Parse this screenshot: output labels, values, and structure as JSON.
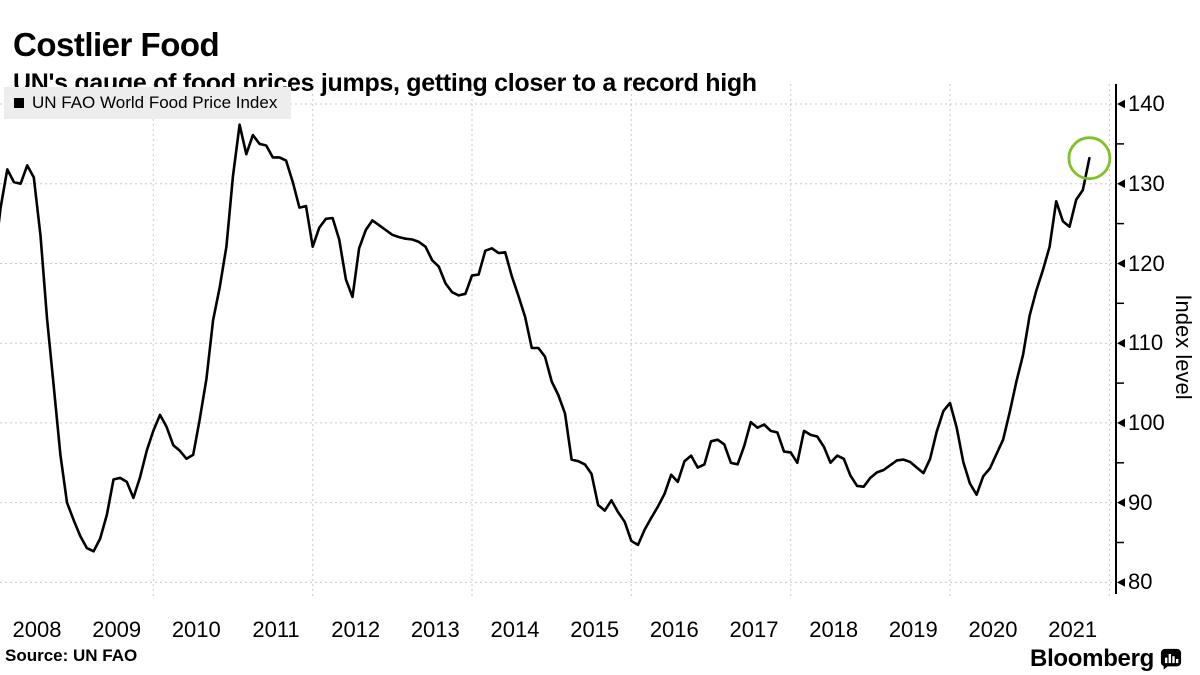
{
  "header": {
    "title": "Costlier Food",
    "subtitle": "UN's gauge of food prices jumps, getting closer to a record high"
  },
  "legend": {
    "label": "UN FAO World Food Price Index"
  },
  "source": {
    "label": "Source: UN FAO"
  },
  "branding": {
    "logo_text": "Bloomberg"
  },
  "colors": {
    "line": "#000000",
    "grid": "#c9c9c9",
    "axis": "#000000",
    "legend_bg": "#ededed",
    "highlight": "#7ec225",
    "text": "#000000",
    "background": "#ffffff"
  },
  "chart_data": {
    "type": "line",
    "title": "UN FAO World Food Price Index",
    "xlabel": "",
    "ylabel": "Index level",
    "ylim": [
      77.5,
      142.5
    ],
    "grid": true,
    "legend_position": "top-left",
    "y_major_ticks": [
      140,
      130,
      120,
      110,
      100,
      90,
      80
    ],
    "y_minor_ticks": [
      135,
      125,
      115,
      105,
      95,
      85
    ],
    "x_year_labels": [
      "2008",
      "2009",
      "2010",
      "2011",
      "2012",
      "2013",
      "2014",
      "2015",
      "2016",
      "2017",
      "2018",
      "2019",
      "2020",
      "2021"
    ],
    "x_gridline_years": [
      2010,
      2012,
      2014,
      2016,
      2018,
      2020,
      2022
    ],
    "frequency": "monthly",
    "start": "2008-01",
    "end": "2021-10",
    "series": [
      {
        "name": "UN FAO World Food Price Index",
        "values": [
          120.0,
          127.0,
          131.8,
          130.2,
          130.0,
          132.3,
          130.8,
          123.5,
          113.0,
          104.5,
          96.0,
          90.0,
          87.8,
          85.8,
          84.3,
          83.9,
          85.5,
          88.5,
          92.9,
          93.1,
          92.6,
          90.6,
          93.2,
          96.5,
          99.0,
          101.0,
          99.5,
          97.2,
          96.5,
          95.5,
          96.0,
          100.5,
          105.5,
          112.9,
          117.0,
          122.1,
          131.0,
          137.4,
          133.7,
          136.1,
          135.0,
          134.8,
          133.3,
          133.3,
          132.9,
          130.2,
          127.0,
          127.2,
          122.1,
          124.5,
          125.6,
          125.7,
          123.0,
          118.0,
          115.8,
          121.9,
          124.2,
          125.4,
          124.8,
          124.2,
          123.6,
          123.3,
          123.1,
          123.0,
          122.7,
          122.1,
          120.4,
          119.6,
          117.5,
          116.4,
          116.0,
          116.2,
          118.5,
          118.6,
          121.6,
          121.9,
          121.3,
          121.4,
          118.4,
          115.9,
          113.3,
          109.4,
          109.4,
          108.3,
          105.2,
          103.5,
          101.2,
          95.4,
          95.2,
          94.8,
          93.6,
          89.7,
          89.0,
          90.3,
          88.8,
          87.6,
          85.2,
          84.7,
          86.6,
          88.1,
          89.5,
          91.1,
          93.5,
          92.6,
          95.2,
          95.9,
          94.4,
          94.8,
          97.7,
          97.9,
          97.3,
          95.0,
          94.8,
          97.1,
          100.1,
          99.4,
          99.8,
          99.0,
          98.8,
          96.4,
          96.3,
          95.0,
          99.0,
          98.5,
          98.3,
          97.0,
          95.0,
          95.9,
          95.5,
          93.4,
          92.1,
          92.0,
          93.1,
          93.8,
          94.1,
          94.7,
          95.3,
          95.4,
          95.1,
          94.4,
          93.7,
          95.5,
          98.9,
          101.5,
          102.5,
          99.4,
          95.1,
          92.4,
          91.0,
          93.3,
          94.3,
          96.1,
          97.9,
          101.4,
          105.2,
          108.5,
          113.5,
          116.6,
          119.2,
          122.1,
          127.8,
          125.3,
          124.6,
          128.0,
          129.2,
          133.2
        ]
      }
    ],
    "highlight": {
      "type": "circle",
      "month": "2021-10",
      "value": 133.2,
      "color": "#7ec225"
    }
  }
}
